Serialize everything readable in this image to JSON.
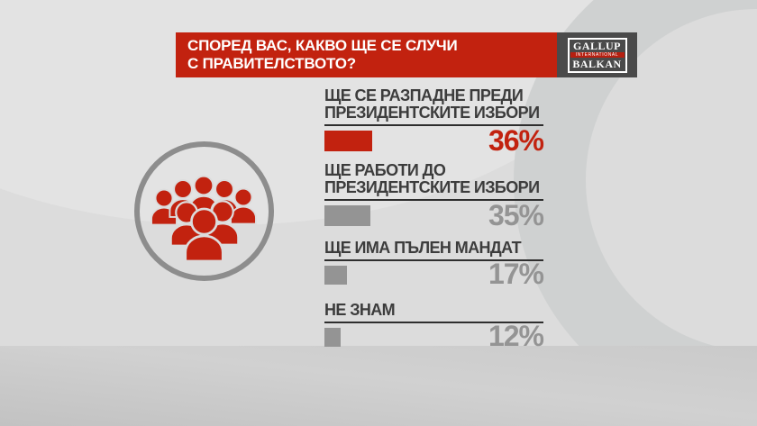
{
  "header": {
    "question": "СПОРЕД ВАС, КАКВО ЩЕ СЕ СЛУЧИ\nС ПРАВИТЕЛСТВОТО?",
    "banner_color": "#c2220f"
  },
  "logo": {
    "top": "GALLUP",
    "middle": "INTERNATIONAL",
    "bottom": "BALKAN"
  },
  "icon": {
    "name": "crowd-icon",
    "color": "#c2220f",
    "ring_color": "#8d8d8d"
  },
  "chart_data": {
    "type": "bar",
    "orientation": "horizontal",
    "title": "СПОРЕД ВАС, КАКВО ЩЕ СЕ СЛУЧИ С ПРАВИТЕЛСТВОТО?",
    "categories": [
      "ЩЕ СЕ РАЗПАДНЕ ПРЕДИ ПРЕЗИДЕНТСКИТЕ ИЗБОРИ",
      "ЩЕ РАБОТИ ДО ПРЕЗИДЕНТСКИТЕ ИЗБОРИ",
      "ЩЕ ИМА ПЪЛЕН МАНДАТ",
      "НЕ ЗНАМ"
    ],
    "values": [
      36,
      35,
      17,
      12
    ],
    "unit": "%",
    "highlight_color": "#c2220f",
    "default_color": "#949494",
    "legend": "none",
    "grid": false,
    "rows": [
      {
        "label": "ЩЕ СЕ РАЗПАДНЕ ПРЕДИ\nПРЕЗИДЕНТСКИТЕ ИЗБОРИ",
        "value": 36,
        "display": "36%",
        "color": "#c2220f"
      },
      {
        "label": "ЩЕ РАБОТИ ДО\nПРЕЗИДЕНТСКИТЕ ИЗБОРИ",
        "value": 35,
        "display": "35%",
        "color": "#949494"
      },
      {
        "label": "ЩЕ ИМА ПЪЛЕН МАНДАТ",
        "value": 17,
        "display": "17%",
        "color": "#949494"
      },
      {
        "label": "НЕ ЗНАМ",
        "value": 12,
        "display": "12%",
        "color": "#949494"
      }
    ]
  }
}
